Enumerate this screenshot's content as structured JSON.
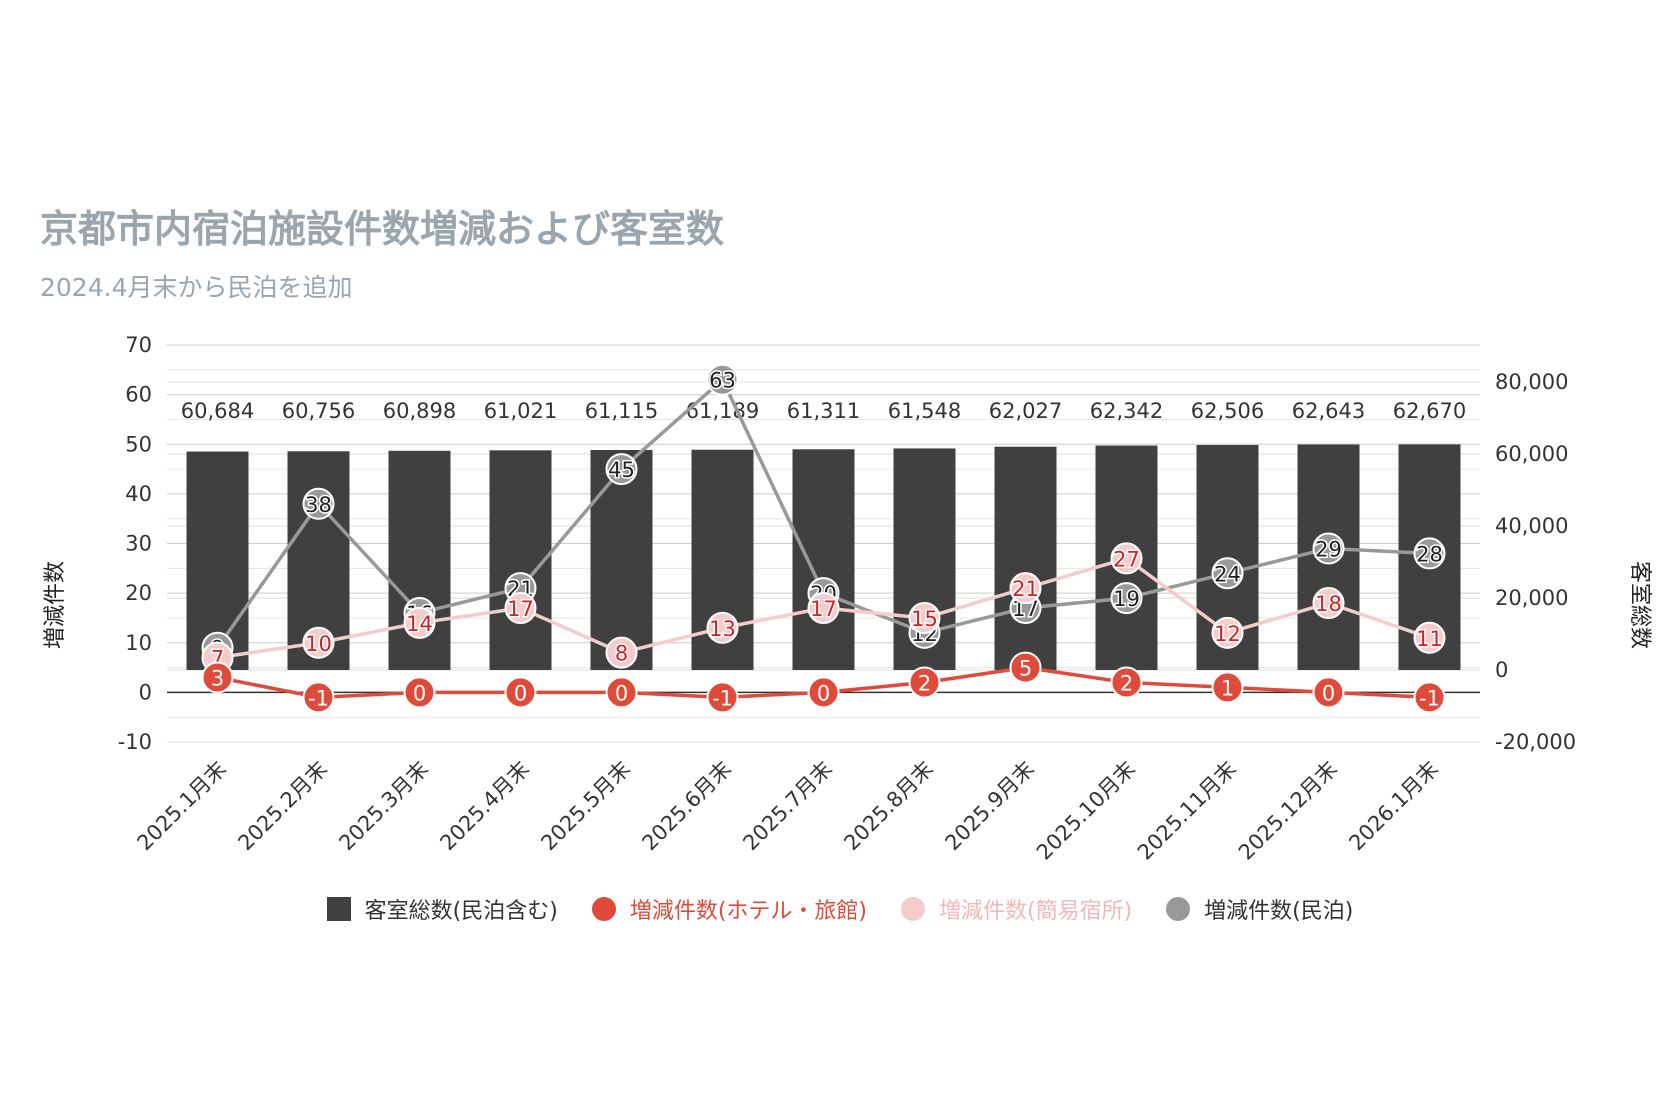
{
  "chart_data": {
    "type": "bar+line",
    "title": "京都市内宿泊施設件数増減および客室数",
    "subtitle": "2024.4月末から民泊を追加",
    "categories": [
      "2025.1月末",
      "2025.2月末",
      "2025.3月末",
      "2025.4月末",
      "2025.5月末",
      "2025.6月末",
      "2025.7月末",
      "2025.8月末",
      "2025.9月末",
      "2025.10月末",
      "2025.11月末",
      "2025.12月末",
      "2026.1月末"
    ],
    "left_axis": {
      "label": "増減件数",
      "range": [
        -10,
        70
      ],
      "ticks": [
        "-10",
        "0",
        "10",
        "20",
        "30",
        "40",
        "50",
        "60",
        "70"
      ]
    },
    "right_axis": {
      "label": "客室総数",
      "range": [
        -20000,
        80000
      ],
      "ticks": [
        "-20,000",
        "0",
        "20,000",
        "40,000",
        "60,000",
        "80,000"
      ]
    },
    "bar_series": {
      "name": "客室総数(民泊含む)",
      "color": "#404040",
      "axis": "right",
      "values": [
        60684,
        60756,
        60898,
        61021,
        61115,
        61189,
        61311,
        61548,
        62027,
        62342,
        62506,
        62643,
        62670
      ],
      "labels": [
        "60,684",
        "60,756",
        "60,898",
        "61,021",
        "61,115",
        "61,189",
        "61,311",
        "61,548",
        "62,027",
        "62,342",
        "62,506",
        "62,643",
        "62,670"
      ]
    },
    "line_series": [
      {
        "name": "増減件数(ホテル・旅館)",
        "color": "#e04a3b",
        "label_color": "#ffffff",
        "axis": "left",
        "values": [
          3,
          -1,
          0,
          0,
          0,
          -1,
          0,
          2,
          5,
          2,
          1,
          0,
          -1
        ]
      },
      {
        "name": "増減件数(簡易宿所)",
        "color": "#f4cccc",
        "label_color": "#cc2222",
        "axis": "left",
        "values": [
          7,
          10,
          14,
          17,
          8,
          13,
          17,
          15,
          21,
          27,
          12,
          18,
          11
        ]
      },
      {
        "name": "増減件数(民泊)",
        "color": "#999999",
        "label_color": "#222222",
        "axis": "left",
        "values": [
          9,
          38,
          16,
          21,
          45,
          63,
          20,
          12,
          17,
          19,
          24,
          29,
          28
        ]
      }
    ],
    "grid": true,
    "legend_position": "bottom"
  }
}
